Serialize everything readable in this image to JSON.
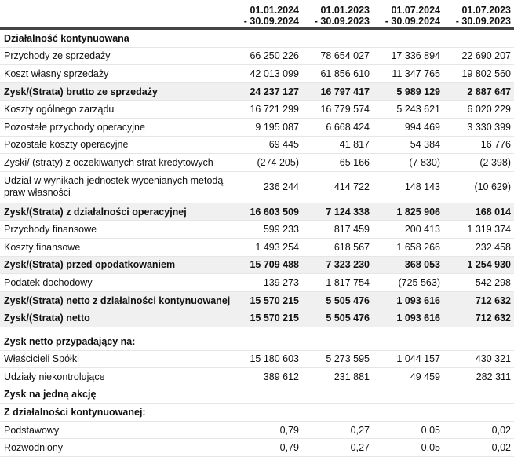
{
  "headers": [
    {
      "line1": "01.01.2024",
      "line2": "- 30.09.2024"
    },
    {
      "line1": "01.01.2023",
      "line2": "- 30.09.2023"
    },
    {
      "line1": "01.07.2024",
      "line2": "- 30.09.2024"
    },
    {
      "line1": "01.07.2023",
      "line2": "- 30.09.2023"
    }
  ],
  "rows": [
    {
      "label": "Działalność kontynuowana",
      "values": [
        "",
        "",
        "",
        ""
      ],
      "style": "sec"
    },
    {
      "label": "Przychody ze sprzedaży",
      "values": [
        "66 250 226",
        "78 654 027",
        "17 336 894",
        "22 690 207"
      ]
    },
    {
      "label": "Koszt własny sprzedaży",
      "values": [
        "42 013 099",
        "61 856 610",
        "11 347 765",
        "19 802 560"
      ]
    },
    {
      "label": "Zysk/(Strata) brutto ze sprzedaży",
      "values": [
        "24 237 127",
        "16 797 417",
        "5 989 129",
        "2 887 647"
      ],
      "style": "bold shade"
    },
    {
      "label": "Koszty ogólnego zarządu",
      "values": [
        "16 721 299",
        "16 779 574",
        "5 243 621",
        "6 020 229"
      ]
    },
    {
      "label": "Pozostałe przychody operacyjne",
      "values": [
        "9 195 087",
        "6 668 424",
        "994 469",
        "3 330 399"
      ]
    },
    {
      "label": "Pozostałe koszty operacyjne",
      "values": [
        "69 445",
        "41 817",
        "54 384",
        "16 776"
      ]
    },
    {
      "label": "Zyski/ (straty) z oczekiwanych strat kredytowych",
      "values": [
        "(274 205)",
        "65 166",
        "(7 830)",
        "(2 398)"
      ]
    },
    {
      "label": "Udział w wynikach jednostek wycenianych metodą praw własności",
      "values": [
        "236 244",
        "414 722",
        "148 143",
        "(10 629)"
      ],
      "style": "tall"
    },
    {
      "label": "Zysk/(Strata) z działalności operacyjnej",
      "values": [
        "16 603 509",
        "7 124 338",
        "1 825 906",
        "168 014"
      ],
      "style": "bold shade"
    },
    {
      "label": "Przychody finansowe",
      "values": [
        "599 233",
        "817 459",
        "200 413",
        "1 319 374"
      ]
    },
    {
      "label": "Koszty finansowe",
      "values": [
        "1 493 254",
        "618 567",
        "1 658 266",
        "232 458"
      ]
    },
    {
      "label": "Zysk/(Strata) przed opodatkowaniem",
      "values": [
        "15 709 488",
        "7 323 230",
        "368 053",
        "1 254 930"
      ],
      "style": "bold shade"
    },
    {
      "label": "Podatek dochodowy",
      "values": [
        "139 273",
        "1 817 754",
        "(725 563)",
        "542 298"
      ]
    },
    {
      "label": "Zysk/(Strata) netto z działalności kontynuowanej",
      "values": [
        "15 570 215",
        "5 505 476",
        "1 093 616",
        "712 632"
      ],
      "style": "bold shade"
    },
    {
      "label": "Zysk/(Strata) netto",
      "values": [
        "15 570 215",
        "5 505 476",
        "1 093 616",
        "712 632"
      ],
      "style": "bold shade"
    },
    {
      "spacer": true
    },
    {
      "label": "Zysk netto przypadający na:",
      "values": [
        "",
        "",
        "",
        ""
      ],
      "style": "sec"
    },
    {
      "label": "Właścicieli Spółki",
      "values": [
        "15 180 603",
        "5 273 595",
        "1 044 157",
        "430 321"
      ]
    },
    {
      "label": "Udziały niekontrolujące",
      "values": [
        "389 612",
        "231 881",
        "49 459",
        "282 311"
      ]
    },
    {
      "label": "Zysk na jedną akcję",
      "values": [
        "",
        "",
        "",
        ""
      ],
      "style": "sec"
    },
    {
      "label": "Z działalności kontynuowanej:",
      "values": [
        "",
        "",
        "",
        ""
      ],
      "style": "sec"
    },
    {
      "label": "Podstawowy",
      "values": [
        "0,79",
        "0,27",
        "0,05",
        "0,02"
      ]
    },
    {
      "label": "Rozwodniony",
      "values": [
        "0,79",
        "0,27",
        "0,05",
        "0,02"
      ]
    }
  ]
}
